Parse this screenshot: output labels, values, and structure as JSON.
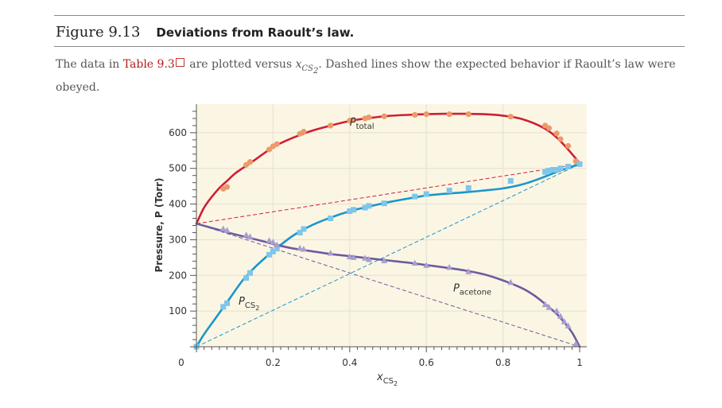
{
  "figure": {
    "number": "Figure 9.13",
    "title": "Deviations from Raoult’s law."
  },
  "caption": {
    "before": "The data in ",
    "link": "Table 9.3",
    "middle": " are plotted versus ",
    "math_var": "x",
    "math_sub": "CS",
    "math_subsub": "2",
    "after": ". Dashed lines show the expected behavior if Raoult’s law were obeyed."
  },
  "colors": {
    "plot_bg": "#fbf6e3",
    "grid": "#e4e0d2",
    "total": "#cf1f36",
    "total_marker": "#eb9a6c",
    "cs2": "#1a96cc",
    "cs2_marker": "#7ec6ea",
    "acetone": "#6f5aa0",
    "acetone_marker": "#a89fce",
    "axis": "#555555"
  },
  "chart_data": {
    "type": "line",
    "xlabel": "x",
    "xlabel_sub": "CS",
    "xlabel_subsub": "2",
    "ylabel": "Pressure, P (Torr)",
    "xlim": [
      0,
      1
    ],
    "ylim": [
      0,
      680
    ],
    "x_ticks": [
      {
        "value": 0,
        "label": "0"
      },
      {
        "value": 0.2,
        "label": "0.2"
      },
      {
        "value": 0.4,
        "label": "0.4"
      },
      {
        "value": 0.6,
        "label": "0.6"
      },
      {
        "value": 0.8,
        "label": "0.8"
      },
      {
        "value": 1,
        "label": "1"
      }
    ],
    "y_ticks": [
      {
        "value": 100,
        "label": "100"
      },
      {
        "value": 200,
        "label": "200"
      },
      {
        "value": 300,
        "label": "300"
      },
      {
        "value": 400,
        "label": "400"
      },
      {
        "value": 500,
        "label": "500"
      },
      {
        "value": 600,
        "label": "600"
      }
    ],
    "grid": true,
    "series": [
      {
        "key": "total",
        "label_main": "P",
        "label_sub": "total",
        "label_at": [
          0.4,
          620
        ],
        "curve": [
          [
            0,
            345
          ],
          [
            0.02,
            390
          ],
          [
            0.04,
            420
          ],
          [
            0.06,
            445
          ],
          [
            0.08,
            465
          ],
          [
            0.1,
            485
          ],
          [
            0.12,
            500
          ],
          [
            0.15,
            522
          ],
          [
            0.18,
            545
          ],
          [
            0.2,
            560
          ],
          [
            0.25,
            585
          ],
          [
            0.3,
            605
          ],
          [
            0.35,
            620
          ],
          [
            0.4,
            633
          ],
          [
            0.45,
            641
          ],
          [
            0.5,
            647
          ],
          [
            0.55,
            650
          ],
          [
            0.6,
            652
          ],
          [
            0.65,
            653
          ],
          [
            0.7,
            653
          ],
          [
            0.75,
            652
          ],
          [
            0.8,
            648
          ],
          [
            0.85,
            638
          ],
          [
            0.9,
            617
          ],
          [
            0.93,
            596
          ],
          [
            0.96,
            565
          ],
          [
            1,
            515
          ]
        ],
        "points": [
          [
            0.07,
            443
          ],
          [
            0.08,
            448
          ],
          [
            0.13,
            510
          ],
          [
            0.14,
            518
          ],
          [
            0.19,
            553
          ],
          [
            0.2,
            562
          ],
          [
            0.21,
            568
          ],
          [
            0.27,
            597
          ],
          [
            0.28,
            603
          ],
          [
            0.35,
            620
          ],
          [
            0.4,
            634
          ],
          [
            0.41,
            636
          ],
          [
            0.44,
            640
          ],
          [
            0.45,
            643
          ],
          [
            0.49,
            646
          ],
          [
            0.57,
            650
          ],
          [
            0.6,
            652
          ],
          [
            0.66,
            652
          ],
          [
            0.71,
            652
          ],
          [
            0.82,
            645
          ],
          [
            0.91,
            620
          ],
          [
            0.92,
            613
          ],
          [
            0.94,
            598
          ],
          [
            0.95,
            582
          ],
          [
            0.97,
            563
          ],
          [
            0.99,
            520
          ]
        ]
      },
      {
        "key": "cs2",
        "label_main": "P",
        "label_sub": "CS",
        "label_subsub": "2",
        "label_at": [
          0.11,
          118
        ],
        "curve": [
          [
            0,
            0
          ],
          [
            0.02,
            35
          ],
          [
            0.05,
            80
          ],
          [
            0.08,
            125
          ],
          [
            0.12,
            185
          ],
          [
            0.15,
            220
          ],
          [
            0.18,
            250
          ],
          [
            0.2,
            268
          ],
          [
            0.25,
            310
          ],
          [
            0.3,
            340
          ],
          [
            0.35,
            362
          ],
          [
            0.4,
            380
          ],
          [
            0.45,
            393
          ],
          [
            0.5,
            405
          ],
          [
            0.55,
            415
          ],
          [
            0.6,
            424
          ],
          [
            0.65,
            429
          ],
          [
            0.7,
            433
          ],
          [
            0.75,
            438
          ],
          [
            0.8,
            444
          ],
          [
            0.85,
            455
          ],
          [
            0.9,
            473
          ],
          [
            0.95,
            494
          ],
          [
            1,
            512
          ]
        ],
        "points": [
          [
            0,
            0
          ],
          [
            0.07,
            112
          ],
          [
            0.08,
            122
          ],
          [
            0.13,
            193
          ],
          [
            0.14,
            207
          ],
          [
            0.19,
            258
          ],
          [
            0.2,
            267
          ],
          [
            0.21,
            275
          ],
          [
            0.27,
            320
          ],
          [
            0.28,
            330
          ],
          [
            0.35,
            360
          ],
          [
            0.4,
            380
          ],
          [
            0.41,
            384
          ],
          [
            0.44,
            390
          ],
          [
            0.45,
            395
          ],
          [
            0.49,
            402
          ],
          [
            0.57,
            421
          ],
          [
            0.6,
            428
          ],
          [
            0.66,
            438
          ],
          [
            0.71,
            445
          ],
          [
            0.82,
            465
          ],
          [
            0.91,
            490
          ],
          [
            0.92,
            494
          ],
          [
            0.93,
            496
          ],
          [
            0.94,
            496
          ],
          [
            0.95,
            500
          ],
          [
            0.97,
            505
          ],
          [
            1,
            512
          ]
        ]
      },
      {
        "key": "acetone",
        "label_main": "P",
        "label_sub": "acetone",
        "label_at": [
          0.67,
          155
        ],
        "curve": [
          [
            0,
            345
          ],
          [
            0.03,
            336
          ],
          [
            0.06,
            327
          ],
          [
            0.09,
            318
          ],
          [
            0.12,
            310
          ],
          [
            0.15,
            302
          ],
          [
            0.18,
            294
          ],
          [
            0.2,
            288
          ],
          [
            0.25,
            276
          ],
          [
            0.3,
            268
          ],
          [
            0.35,
            260
          ],
          [
            0.4,
            254
          ],
          [
            0.45,
            248
          ],
          [
            0.5,
            242
          ],
          [
            0.55,
            236
          ],
          [
            0.6,
            229
          ],
          [
            0.65,
            222
          ],
          [
            0.7,
            214
          ],
          [
            0.75,
            203
          ],
          [
            0.8,
            186
          ],
          [
            0.85,
            164
          ],
          [
            0.88,
            145
          ],
          [
            0.91,
            120
          ],
          [
            0.94,
            92
          ],
          [
            0.96,
            68
          ],
          [
            0.98,
            40
          ],
          [
            1,
            0
          ]
        ],
        "points": [
          [
            0.07,
            330
          ],
          [
            0.08,
            326
          ],
          [
            0.13,
            313
          ],
          [
            0.14,
            308
          ],
          [
            0.19,
            297
          ],
          [
            0.2,
            293
          ],
          [
            0.21,
            285
          ],
          [
            0.27,
            276
          ],
          [
            0.28,
            273
          ],
          [
            0.35,
            262
          ],
          [
            0.4,
            252
          ],
          [
            0.41,
            250
          ],
          [
            0.44,
            248
          ],
          [
            0.45,
            244
          ],
          [
            0.49,
            241
          ],
          [
            0.57,
            234
          ],
          [
            0.6,
            228
          ],
          [
            0.66,
            222
          ],
          [
            0.71,
            210
          ],
          [
            0.82,
            180
          ],
          [
            0.91,
            118
          ],
          [
            0.92,
            110
          ],
          [
            0.94,
            100
          ],
          [
            0.95,
            85
          ],
          [
            0.96,
            70
          ],
          [
            0.97,
            58
          ],
          [
            0.99,
            8
          ]
        ]
      }
    ],
    "ideal_lines": [
      {
        "key": "total",
        "from": [
          0,
          345
        ],
        "to": [
          1,
          512
        ]
      },
      {
        "key": "cs2",
        "from": [
          0,
          0
        ],
        "to": [
          1,
          512
        ]
      },
      {
        "key": "acetone",
        "from": [
          0,
          345
        ],
        "to": [
          1,
          0
        ]
      }
    ]
  }
}
